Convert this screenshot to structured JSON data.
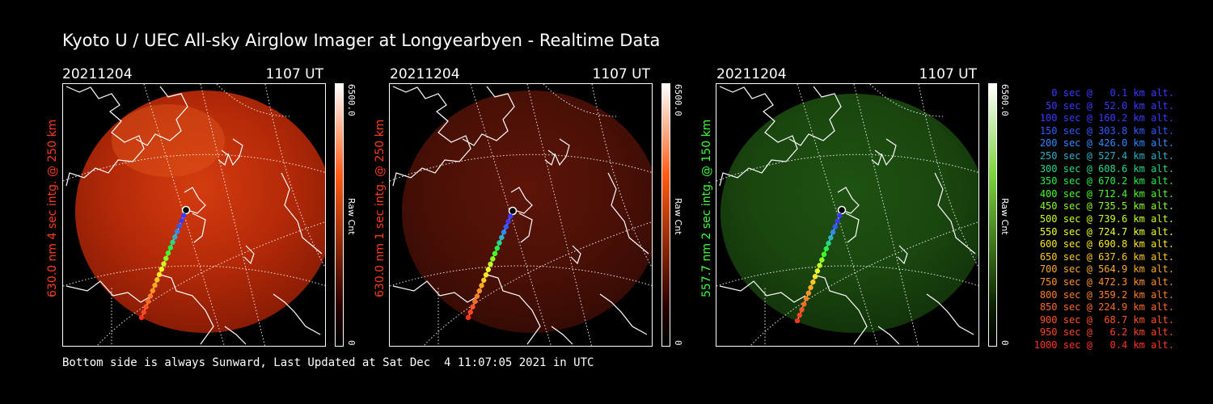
{
  "title": "Kyoto U / UEC All-sky Airglow Imager at Longyearbyen - Realtime Data",
  "panels": [
    {
      "date": "20211204",
      "time": "1107 UT",
      "side_label": "630.0 nm 4 sec intg. @ 250 km",
      "label_color": "#ff3b1c",
      "cbar_max": "6500.0",
      "cbar_unit": "Raw Cnt",
      "cbar_zero": "0",
      "tint": "#c82a0a",
      "glow": 0.95
    },
    {
      "date": "20211204",
      "time": "1107 UT",
      "side_label": "630.0 nm 1 sec intg. @ 250 km",
      "label_color": "#ff3b1c",
      "cbar_max": "6500.0",
      "cbar_unit": "Raw Cnt",
      "cbar_zero": "0",
      "tint": "#5a1208",
      "glow": 0.95
    },
    {
      "date": "20211204",
      "time": "1107 UT",
      "side_label": "557.7 nm 2 sec intg. @ 150 km",
      "label_color": "#3cff3c",
      "cbar_max": "6500.0",
      "cbar_unit": "Raw Cnt",
      "cbar_zero": "0",
      "tint": "#1b4a12",
      "glow": 0.95
    }
  ],
  "footer": "Bottom side is always Sunward, Last Updated at Sat Dec  4 11:07:05 2021 in UTC",
  "legend": [
    {
      "text": "0 sec @   0.1 km alt.",
      "color": "#3a3aff"
    },
    {
      "text": "50 sec @  52.0 km alt.",
      "color": "#3a3aff"
    },
    {
      "text": "100 sec @ 160.2 km alt.",
      "color": "#3a3aff"
    },
    {
      "text": "150 sec @ 303.8 km alt.",
      "color": "#2e5cff"
    },
    {
      "text": "200 sec @ 426.0 km alt.",
      "color": "#2e8aff"
    },
    {
      "text": "250 sec @ 527.4 km alt.",
      "color": "#2ab0c8"
    },
    {
      "text": "300 sec @ 608.6 km alt.",
      "color": "#22d88a"
    },
    {
      "text": "350 sec @ 670.2 km alt.",
      "color": "#22f044"
    },
    {
      "text": "400 sec @ 712.4 km alt.",
      "color": "#44ff22"
    },
    {
      "text": "450 sec @ 735.5 km alt.",
      "color": "#88ff22"
    },
    {
      "text": "500 sec @ 739.6 km alt.",
      "color": "#c8ff22"
    },
    {
      "text": "550 sec @ 724.7 km alt.",
      "color": "#f0ff22"
    },
    {
      "text": "600 sec @ 690.8 km alt.",
      "color": "#ffe822"
    },
    {
      "text": "650 sec @ 637.6 km alt.",
      "color": "#ffc822"
    },
    {
      "text": "700 sec @ 564.9 km alt.",
      "color": "#ffa822"
    },
    {
      "text": "750 sec @ 472.3 km alt.",
      "color": "#ff9222"
    },
    {
      "text": "800 sec @ 359.2 km alt.",
      "color": "#ff7e22"
    },
    {
      "text": "850 sec @ 224.9 km alt.",
      "color": "#ff6a22"
    },
    {
      "text": "900 sec @  68.7 km alt.",
      "color": "#ff5422"
    },
    {
      "text": "950 sec @   6.2 km alt.",
      "color": "#ff4422"
    },
    {
      "text": "1000 sec @   0.4 km alt.",
      "color": "#ff3322"
    }
  ],
  "icons": {
    "trajectory_start": "circle-marker-icon"
  }
}
